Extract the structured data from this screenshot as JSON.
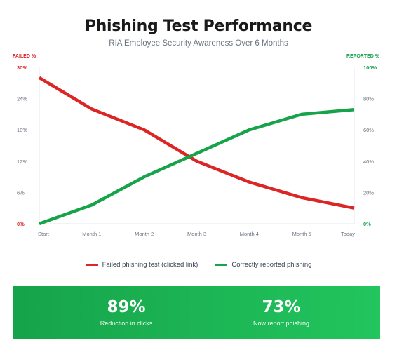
{
  "chart_data": {
    "type": "line",
    "title": "Phishing Test Performance",
    "subtitle": "RIA Employee Security Awareness Over 6 Months",
    "categories": [
      "Start",
      "Month 1",
      "Month 2",
      "Month 3",
      "Month 4",
      "Month 5",
      "Today"
    ],
    "y_left": {
      "label": "FAILED %",
      "lim": [
        0,
        30
      ],
      "ticks": [
        0,
        6,
        12,
        18,
        24,
        30
      ],
      "tick_labels": [
        "0%",
        "6%",
        "12%",
        "18%",
        "24%",
        "30%"
      ]
    },
    "y_right": {
      "label": "REPORTED %",
      "lim": [
        0,
        100
      ],
      "ticks": [
        0,
        20,
        40,
        60,
        80,
        100
      ],
      "tick_labels": [
        "0%",
        "20%",
        "40%",
        "60%",
        "80%",
        "100%"
      ]
    },
    "series": [
      {
        "name": "Failed phishing test (clicked link)",
        "axis": "left",
        "color": "#dc2626",
        "values": [
          28,
          22,
          18,
          12,
          8,
          5,
          3
        ]
      },
      {
        "name": "Correctly reported phishing",
        "axis": "right",
        "color": "#16a34a",
        "values": [
          0,
          12,
          30,
          45,
          60,
          70,
          73
        ]
      }
    ],
    "grid": false,
    "legend_position": "bottom"
  },
  "summary": {
    "stats": [
      {
        "value": "89%",
        "label": "Reduction in clicks"
      },
      {
        "value": "73%",
        "label": "Now report phishing"
      }
    ]
  },
  "colors": {
    "failed": "#dc2626",
    "reported": "#16a34a",
    "banner": "#16a34a"
  }
}
